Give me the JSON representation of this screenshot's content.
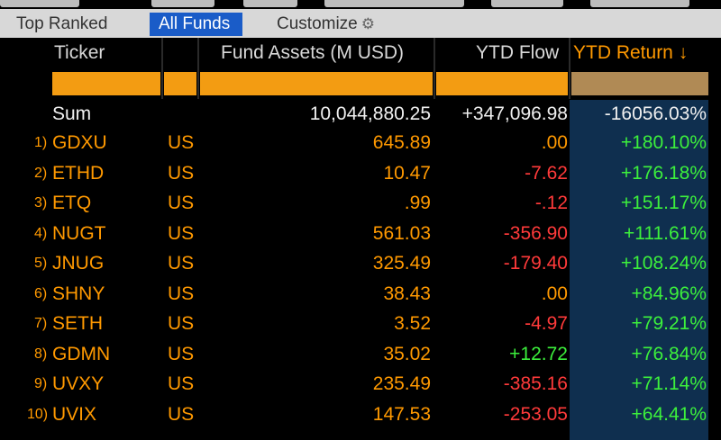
{
  "subtabs": [
    "Top Ranked",
    "All Funds",
    "Customize"
  ],
  "columns": [
    "Ticker",
    "Fund Assets (M USD)",
    "YTD Flow",
    "YTD Return ↓"
  ],
  "sum": {
    "label": "Sum",
    "assets": "10,044,880.25",
    "flow": "+347,096.98",
    "ret": "-16056.03%"
  },
  "rows": [
    {
      "n": "1)",
      "ticker": "GDXU",
      "country": "US",
      "assets": "645.89",
      "flow": "",
      "flow_text": ".00",
      "ret": "+180.10%"
    },
    {
      "n": "2)",
      "ticker": "ETHD",
      "country": "US",
      "assets": "10.47",
      "flow": "red",
      "flow_text": "-7.62",
      "ret": "+176.18%"
    },
    {
      "n": "3)",
      "ticker": "ETQ",
      "country": "US",
      "assets": ".99",
      "flow": "red",
      "flow_text": "-.12",
      "ret": "+151.17%"
    },
    {
      "n": "4)",
      "ticker": "NUGT",
      "country": "US",
      "assets": "561.03",
      "flow": "red",
      "flow_text": "-356.90",
      "ret": "+111.61%"
    },
    {
      "n": "5)",
      "ticker": "JNUG",
      "country": "US",
      "assets": "325.49",
      "flow": "red",
      "flow_text": "-179.40",
      "ret": "+108.24%"
    },
    {
      "n": "6)",
      "ticker": "SHNY",
      "country": "US",
      "assets": "38.43",
      "flow": "",
      "flow_text": ".00",
      "ret": "+84.96%"
    },
    {
      "n": "7)",
      "ticker": "SETH",
      "country": "US",
      "assets": "3.52",
      "flow": "red",
      "flow_text": "-4.97",
      "ret": "+79.21%"
    },
    {
      "n": "8)",
      "ticker": "GDMN",
      "country": "US",
      "assets": "35.02",
      "flow": "green",
      "flow_text": "+12.72",
      "ret": "+76.84%"
    },
    {
      "n": "9)",
      "ticker": "UVXY",
      "country": "US",
      "assets": "235.49",
      "flow": "red",
      "flow_text": "-385.16",
      "ret": "+71.14%"
    },
    {
      "n": "10)",
      "ticker": "UVIX",
      "country": "US",
      "assets": "147.53",
      "flow": "red",
      "flow_text": "-253.05",
      "ret": "+64.41%"
    }
  ]
}
